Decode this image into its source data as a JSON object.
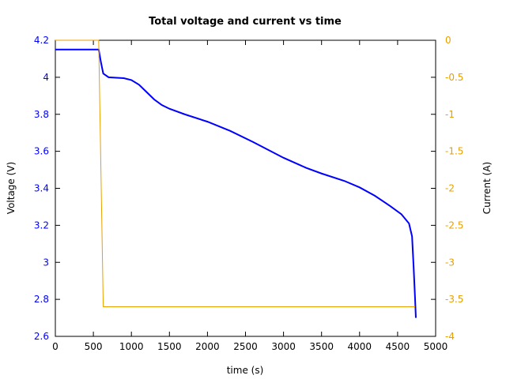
{
  "chart_data": {
    "type": "line",
    "title": "Total voltage and current vs time",
    "xlabel": "time (s)",
    "ylabel": "Voltage (V)",
    "y2label": "Current (A)",
    "xlim": [
      0,
      5000
    ],
    "ylim": [
      2.6,
      4.2
    ],
    "y2lim": [
      -4,
      0
    ],
    "xticks": [
      "0",
      "500",
      "1000",
      "1500",
      "2000",
      "2500",
      "3000",
      "3500",
      "4000",
      "4500",
      "5000"
    ],
    "yticks": [
      "2.6",
      "2.8",
      "3",
      "3.2",
      "3.4",
      "3.6",
      "3.8",
      "4",
      "4.2"
    ],
    "y2ticks": [
      "-4",
      "-3.5",
      "-3",
      "-2.5",
      "-2",
      "-1.5",
      "-1",
      "-0.5",
      "0"
    ],
    "grid": false,
    "series": [
      {
        "name": "Voltage",
        "axis": "left",
        "color": "#0000ff",
        "x": [
          0,
          570,
          600,
          630,
          700,
          900,
          1000,
          1100,
          1200,
          1300,
          1400,
          1500,
          1700,
          2000,
          2300,
          2600,
          3000,
          3300,
          3500,
          3800,
          4000,
          4200,
          4400,
          4550,
          4650,
          4690,
          4710,
          4730,
          4740
        ],
        "y": [
          4.15,
          4.15,
          4.08,
          4.02,
          4.0,
          3.995,
          3.985,
          3.96,
          3.92,
          3.88,
          3.85,
          3.83,
          3.8,
          3.76,
          3.71,
          3.65,
          3.565,
          3.51,
          3.48,
          3.44,
          3.405,
          3.36,
          3.305,
          3.26,
          3.21,
          3.14,
          2.98,
          2.8,
          2.7
        ]
      },
      {
        "name": "Current",
        "axis": "right",
        "color": "#e8a000",
        "x": [
          0,
          570,
          630,
          4730
        ],
        "y": [
          0,
          0,
          -3.6,
          -3.6
        ]
      }
    ]
  }
}
